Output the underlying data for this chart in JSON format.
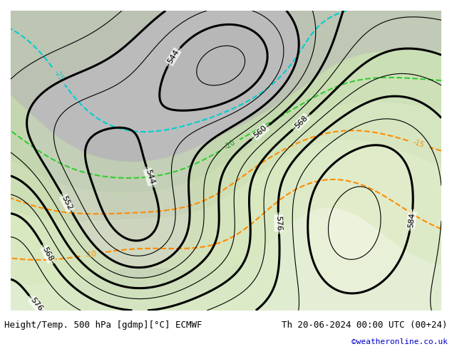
{
  "title_left": "Height/Temp. 500 hPa [gdmp][°C] ECMWF",
  "title_right": "Th 20-06-2024 00:00 UTC (00+24)",
  "credit": "©weatheronline.co.uk",
  "bg_color": "#d4e8c2",
  "gray_color": "#c8c8c8",
  "height_contour_color": "#000000",
  "temp_warm_color": "#ff8c00",
  "temp_cold_green_color": "#32cd32",
  "temp_very_cold_color": "#00ced1",
  "title_fontsize": 9,
  "credit_fontsize": 8,
  "label_fontsize": 7,
  "figsize": [
    6.34,
    4.9
  ],
  "dpi": 100
}
